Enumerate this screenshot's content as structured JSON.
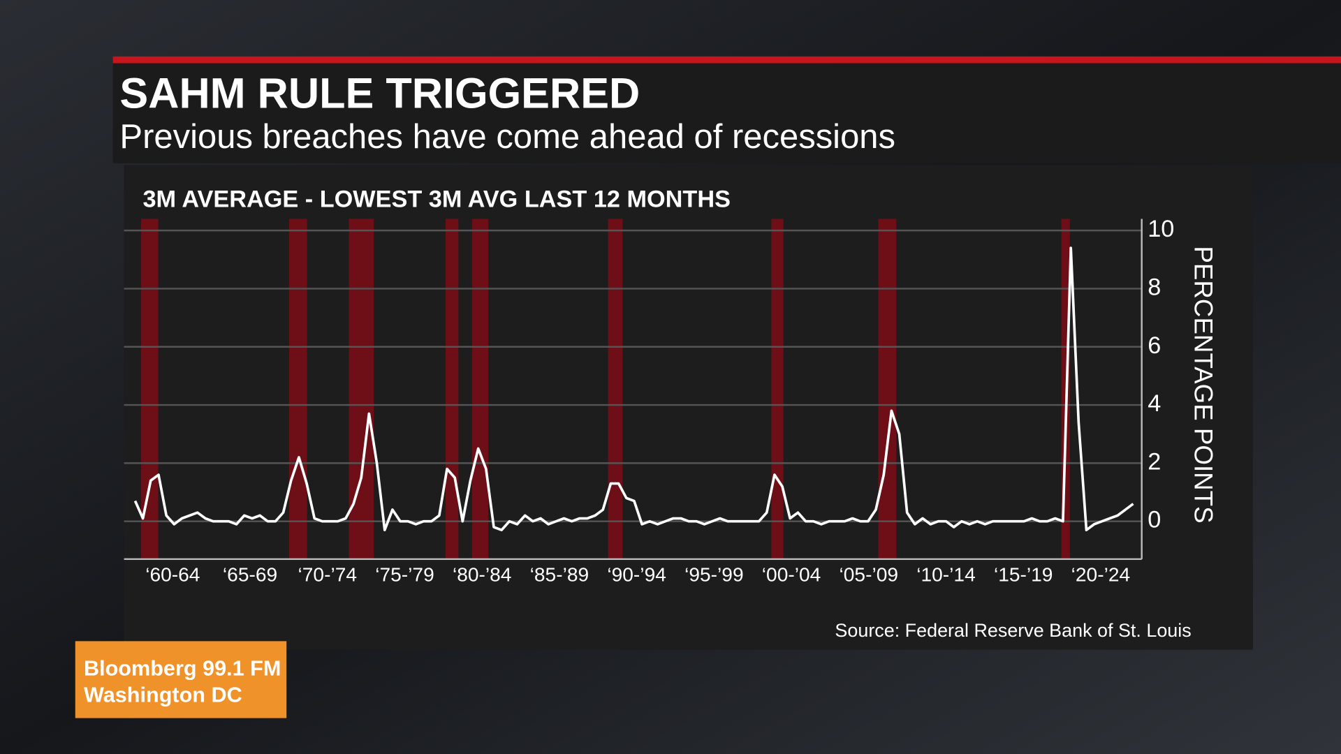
{
  "chart_data": {
    "type": "line",
    "title": "SAHM RULE TRIGGERED",
    "subtitle": "Previous breaches have come ahead of recessions",
    "chart_title": "3M AVERAGE - LOWEST 3M AVG LAST 12 MONTHS",
    "ylabel": "PERCENTAGE POINTS",
    "source": "Source: Federal Reserve Bank of St. Louis",
    "branding": [
      "Bloomberg 99.1 FM",
      "Washington DC"
    ],
    "xticklabels": [
      "‘60-64",
      "‘65-69",
      "‘70-’74",
      "‘75-’79",
      "‘80-’84",
      "‘85-’89",
      "‘90-’94",
      "‘95-’99",
      "‘00-’04",
      "‘05-’09",
      "‘10-’14",
      "‘15-’19",
      "‘20-’24"
    ],
    "values": [
      0.7,
      0.1,
      1.4,
      1.6,
      0.2,
      -0.1,
      0.1,
      0.2,
      0.3,
      0.1,
      0,
      0,
      0,
      -0.1,
      0.2,
      0.1,
      0.2,
      0,
      0,
      0.3,
      1.4,
      2.2,
      1.3,
      0.1,
      0,
      0,
      0,
      0.1,
      0.6,
      1.5,
      3.7,
      2.0,
      -0.3,
      0.4,
      0,
      0,
      -0.1,
      0,
      0,
      0.2,
      1.8,
      1.5,
      0,
      1.4,
      2.5,
      1.8,
      -0.2,
      -0.3,
      0,
      -0.1,
      0.2,
      0,
      0.1,
      -0.1,
      0,
      0.1,
      0,
      0.1,
      0.1,
      0.2,
      0.4,
      1.3,
      1.3,
      0.8,
      0.7,
      -0.1,
      0,
      -0.1,
      0,
      0.1,
      0.1,
      0,
      0,
      -0.1,
      0,
      0.1,
      0,
      0,
      0,
      0,
      0,
      0.3,
      1.6,
      1.2,
      0.1,
      0.3,
      0,
      0,
      -0.1,
      0,
      0,
      0,
      0.1,
      0,
      0,
      0.4,
      1.6,
      3.8,
      3.0,
      0.3,
      -0.1,
      0.1,
      -0.1,
      0,
      0,
      -0.2,
      0,
      -0.1,
      0,
      -0.1,
      0,
      0,
      0,
      0,
      0,
      0.1,
      0,
      0,
      0.1,
      0,
      9.4,
      3.4,
      -0.3,
      -0.1,
      0,
      0.1,
      0.2,
      0.4,
      0.6
    ],
    "color": "#ffffff",
    "ylim": [
      -1.3,
      10.4
    ],
    "yticks": [
      0,
      2,
      4,
      6,
      8,
      10
    ],
    "grid": true
  }
}
